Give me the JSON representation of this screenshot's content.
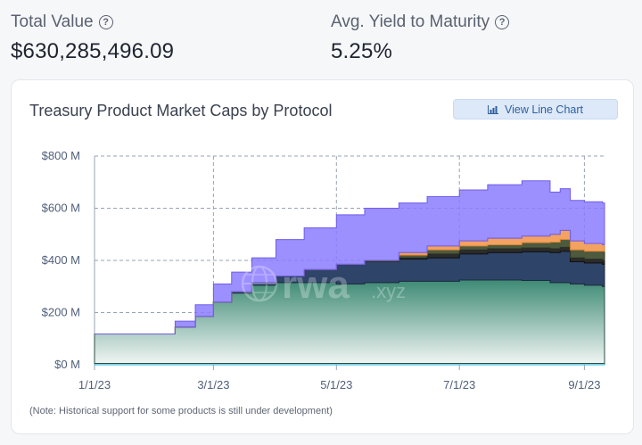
{
  "metrics": {
    "total_value": {
      "label": "Total Value",
      "value": "$630,285,496.09",
      "icon": "question-circle-icon"
    },
    "avg_ytm": {
      "label": "Avg. Yield to Maturity",
      "value": "5.25%",
      "icon": "question-circle-icon"
    }
  },
  "card": {
    "title": "Treasury Product Market Caps by Protocol",
    "button_label": "View Line Chart",
    "button_icon": "bar-chart-icon",
    "note": "(Note: Historical support for some products is still under development)"
  },
  "watermark": {
    "text": "rwa",
    "suffix": ".xyz",
    "icon": "globe-icon"
  },
  "colors": {
    "green_top": "#3d8a74",
    "green_bottom": "#f0f5f3",
    "navy": "#2e4468",
    "olive": "#4d5a3e",
    "orange": "#f4a261",
    "purple": "#8b7bff",
    "purple_light": "#b4a6f5",
    "cyan": "#18b6d4",
    "grid": "#9aa3b0"
  },
  "chart_data": {
    "type": "area",
    "stacked": true,
    "x_ticks": [
      "1/1/23",
      "3/1/23",
      "5/1/23",
      "7/1/23",
      "9/1/23"
    ],
    "y_ticks": [
      "$0 M",
      "$200 M",
      "$400 M",
      "$600 M",
      "$800 M"
    ],
    "ylim": [
      0,
      800
    ],
    "grid": true,
    "x": [
      "1/1/23",
      "1/15/23",
      "2/1/23",
      "2/10/23",
      "2/20/23",
      "3/1/23",
      "3/10/23",
      "3/20/23",
      "4/1/23",
      "4/15/23",
      "5/1/23",
      "5/15/23",
      "6/1/23",
      "6/15/23",
      "7/1/23",
      "7/15/23",
      "8/1/23",
      "8/15/23",
      "8/20/23",
      "8/25/23",
      "9/1/23",
      "9/10/23"
    ],
    "series": [
      {
        "values": [
          5,
          5,
          5,
          5,
          5,
          5,
          5,
          5,
          5,
          5,
          5,
          5,
          5,
          5,
          5,
          5,
          5,
          5,
          5,
          5,
          5,
          5
        ]
      },
      {
        "values": [
          113,
          113,
          113,
          140,
          180,
          235,
          270,
          300,
          310,
          310,
          305,
          310,
          315,
          315,
          320,
          320,
          318,
          310,
          310,
          305,
          300,
          295
        ]
      },
      {
        "values": [
          0,
          0,
          0,
          0,
          0,
          0,
          5,
          10,
          25,
          50,
          75,
          80,
          85,
          90,
          100,
          105,
          110,
          115,
          120,
          85,
          85,
          85
        ]
      },
      {
        "values": [
          0,
          0,
          0,
          0,
          0,
          0,
          0,
          0,
          0,
          0,
          0,
          0,
          5,
          15,
          15,
          15,
          15,
          15,
          15,
          15,
          15,
          15
        ]
      },
      {
        "values": [
          0,
          0,
          0,
          0,
          0,
          0,
          0,
          0,
          0,
          0,
          0,
          5,
          10,
          15,
          15,
          15,
          20,
          25,
          30,
          30,
          30,
          35
        ]
      },
      {
        "values": [
          0,
          0,
          0,
          0,
          0,
          0,
          0,
          0,
          0,
          0,
          0,
          0,
          10,
          15,
          20,
          25,
          25,
          30,
          35,
          35,
          30,
          25
        ]
      },
      {
        "values": [
          0,
          0,
          0,
          22,
          45,
          70,
          75,
          95,
          140,
          160,
          190,
          200,
          190,
          190,
          195,
          205,
          212,
          162,
          160,
          155,
          160,
          160
        ]
      }
    ]
  }
}
